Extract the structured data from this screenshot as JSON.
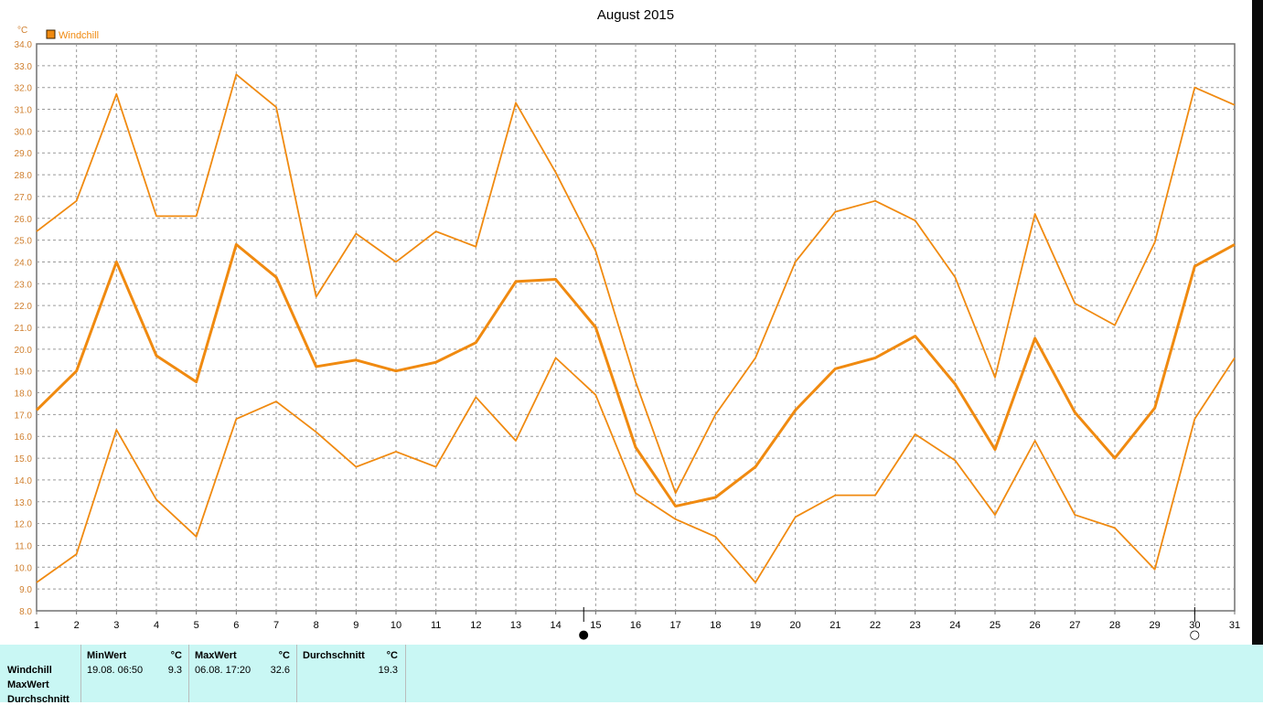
{
  "chart_data": {
    "type": "line",
    "title": "August 2015",
    "unit_label": "°C",
    "legend": {
      "label": "Windchill",
      "color": "#f08a10",
      "placement": "top-left"
    },
    "ylim": [
      8.0,
      34.0
    ],
    "y_ticks": [
      "8.0",
      "9.0",
      "10.0",
      "11.0",
      "12.0",
      "13.0",
      "14.0",
      "15.0",
      "16.0",
      "17.0",
      "18.0",
      "19.0",
      "20.0",
      "21.0",
      "22.0",
      "23.0",
      "24.0",
      "25.0",
      "26.0",
      "27.0",
      "28.0",
      "29.0",
      "30.0",
      "31.0",
      "32.0",
      "33.0",
      "34.0"
    ],
    "x": [
      1,
      2,
      3,
      4,
      5,
      6,
      7,
      8,
      9,
      10,
      11,
      12,
      13,
      14,
      15,
      16,
      17,
      18,
      19,
      20,
      21,
      22,
      23,
      24,
      25,
      26,
      27,
      28,
      29,
      30,
      31
    ],
    "x_tick_labels": [
      "1",
      "2",
      "3",
      "4",
      "5",
      "6",
      "7",
      "8",
      "9",
      "10",
      "11",
      "12",
      "13",
      "14",
      "15",
      "16",
      "17",
      "18",
      "19",
      "20",
      "21",
      "22",
      "23",
      "24",
      "25",
      "26",
      "27",
      "28",
      "29",
      "30",
      "31"
    ],
    "grid": true,
    "series": [
      {
        "values": [
          25.4,
          26.8,
          31.7,
          26.1,
          26.1,
          32.6,
          31.1,
          22.4,
          25.3,
          24.0,
          25.4,
          24.7,
          31.3,
          28.1,
          24.5,
          18.5,
          13.4,
          17.0,
          19.6,
          24.0,
          26.3,
          26.8,
          25.9,
          23.3,
          18.7,
          26.2,
          22.1,
          21.1,
          24.9,
          32.0,
          31.2
        ],
        "weight": "thin"
      },
      {
        "values": [
          17.2,
          19.0,
          24.0,
          19.7,
          18.5,
          24.8,
          23.3,
          19.2,
          19.5,
          19.0,
          19.4,
          20.3,
          23.1,
          23.2,
          21.0,
          15.5,
          12.8,
          13.2,
          14.6,
          17.2,
          19.1,
          19.6,
          20.6,
          18.4,
          15.4,
          20.5,
          17.1,
          15.0,
          17.3,
          23.8,
          24.8
        ],
        "weight": "thick"
      },
      {
        "values": [
          9.3,
          10.6,
          16.3,
          13.1,
          11.4,
          16.8,
          17.6,
          16.2,
          14.6,
          15.3,
          14.6,
          17.8,
          15.8,
          19.6,
          17.9,
          13.4,
          12.2,
          11.4,
          9.3,
          12.3,
          13.3,
          13.3,
          16.1,
          14.9,
          12.4,
          15.8,
          12.4,
          11.8,
          9.9,
          16.8,
          19.6
        ],
        "weight": "thin"
      }
    ],
    "markers": [
      {
        "at_day": 14.7,
        "symbol": "●"
      },
      {
        "at_day": 30,
        "symbol": "○"
      }
    ]
  },
  "summary": {
    "row_labels": [
      "Windchill",
      "MaxWert",
      "Durchschnitt"
    ],
    "columns": [
      {
        "header": "MinWert",
        "unit": "°C",
        "date": "19.08.  06:50",
        "value": "9.3"
      },
      {
        "header": "MaxWert",
        "unit": "°C",
        "date": "06.08.  17:20",
        "value": "32.6"
      },
      {
        "header": "Durchschnitt",
        "unit": "°C",
        "date": "",
        "value": "19.3"
      }
    ]
  }
}
